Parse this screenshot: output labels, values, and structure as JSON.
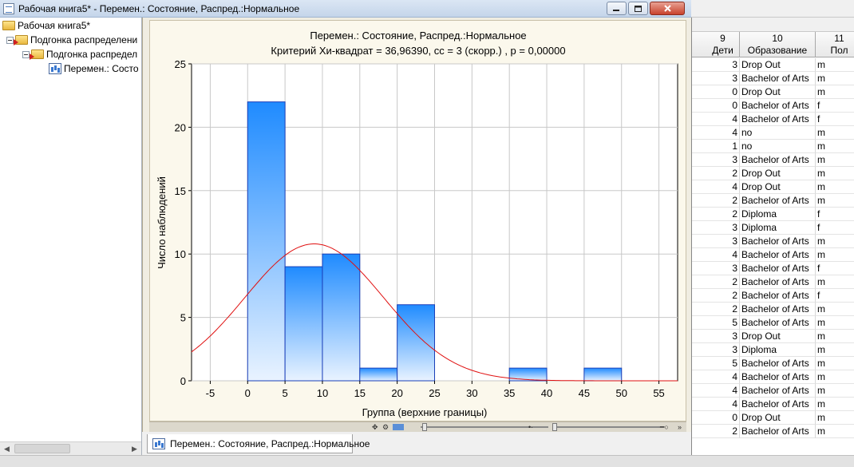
{
  "window": {
    "title": "Рабочая книга5* - Перемен.: Состояние, Распред.:Нормальное"
  },
  "tree": {
    "items": [
      {
        "label": "Рабочая книга5*"
      },
      {
        "label": "Подгонка распределени"
      },
      {
        "label": "Подгонка распредел"
      },
      {
        "label": "Перемен.: Состо"
      }
    ]
  },
  "tab": {
    "label": "Перемен.: Состояние, Распред.:Нормальное"
  },
  "toolbar_icons": [
    "pan-icon",
    "zoom-icon",
    "color-icon",
    "slider-icon",
    "brush-icon"
  ],
  "chart_data": {
    "type": "bar",
    "title": "Перемен.: Состояние, Распред.:Нормальное",
    "subtitle": "Критерий Хи-квадрат = 36,96390, сс = 3 (скорр.) , p = 0,00000",
    "xlabel": "Группа (верхние границы)",
    "ylabel": "Число наблюдений",
    "xlim": [
      -7.5,
      57.5
    ],
    "ylim": [
      0,
      25
    ],
    "xticks": [
      "-5",
      "0",
      "5",
      "10",
      "15",
      "20",
      "25",
      "30",
      "35",
      "40",
      "45",
      "50",
      "55"
    ],
    "xtick_values": [
      -5,
      0,
      5,
      10,
      15,
      20,
      25,
      30,
      35,
      40,
      45,
      50,
      55
    ],
    "yticks": [
      "0",
      "5",
      "10",
      "15",
      "20",
      "25"
    ],
    "ytick_values": [
      0,
      5,
      10,
      15,
      20,
      25
    ],
    "grid": true,
    "bins": [
      {
        "from": 0,
        "to": 5,
        "value": 22
      },
      {
        "from": 5,
        "to": 10,
        "value": 9
      },
      {
        "from": 10,
        "to": 15,
        "value": 10
      },
      {
        "from": 15,
        "to": 20,
        "value": 1
      },
      {
        "from": 20,
        "to": 25,
        "value": 6
      },
      {
        "from": 25,
        "to": 30,
        "value": 0
      },
      {
        "from": 30,
        "to": 35,
        "value": 0
      },
      {
        "from": 35,
        "to": 40,
        "value": 1
      },
      {
        "from": 40,
        "to": 45,
        "value": 0
      },
      {
        "from": 45,
        "to": 50,
        "value": 1
      }
    ],
    "curve": {
      "type": "normal",
      "mean": 8.9,
      "sd": 9.3,
      "peak": 10.8
    },
    "colors": {
      "bar_top": "#1f8bff",
      "bar_bottom": "#e9f3ff",
      "bar_edge": "#1a3fb8",
      "curve": "#e01010",
      "grid": "#c8c8c8"
    }
  },
  "sheet": {
    "headers": [
      {
        "num": "9",
        "name": "Дети"
      },
      {
        "num": "10",
        "name": "Образование"
      },
      {
        "num": "11",
        "name": "Пол"
      }
    ],
    "rows": [
      [
        "3",
        "Drop Out",
        "m"
      ],
      [
        "3",
        "Bachelor of Arts",
        "m"
      ],
      [
        "0",
        "Drop Out",
        "m"
      ],
      [
        "0",
        "Bachelor of Arts",
        "f"
      ],
      [
        "4",
        "Bachelor of Arts",
        "f"
      ],
      [
        "4",
        "no",
        "m"
      ],
      [
        "1",
        "no",
        "m"
      ],
      [
        "3",
        "Bachelor of Arts",
        "m"
      ],
      [
        "2",
        "Drop Out",
        "m"
      ],
      [
        "4",
        "Drop Out",
        "m"
      ],
      [
        "2",
        "Bachelor of Arts",
        "m"
      ],
      [
        "2",
        "Diploma",
        "f"
      ],
      [
        "3",
        "Diploma",
        "f"
      ],
      [
        "3",
        "Bachelor of Arts",
        "m"
      ],
      [
        "4",
        "Bachelor of Arts",
        "m"
      ],
      [
        "3",
        "Bachelor of Arts",
        "f"
      ],
      [
        "2",
        "Bachelor of Arts",
        "m"
      ],
      [
        "2",
        "Bachelor of Arts",
        "f"
      ],
      [
        "2",
        "Bachelor of Arts",
        "m"
      ],
      [
        "5",
        "Bachelor of Arts",
        "m"
      ],
      [
        "3",
        "Drop Out",
        "m"
      ],
      [
        "3",
        "Diploma",
        "m"
      ],
      [
        "5",
        "Bachelor of Arts",
        "m"
      ],
      [
        "4",
        "Bachelor of Arts",
        "m"
      ],
      [
        "4",
        "Bachelor of Arts",
        "m"
      ],
      [
        "4",
        "Bachelor of Arts",
        "m"
      ],
      [
        "0",
        "Drop Out",
        "m"
      ],
      [
        "2",
        "Bachelor of Arts",
        "m"
      ]
    ]
  }
}
